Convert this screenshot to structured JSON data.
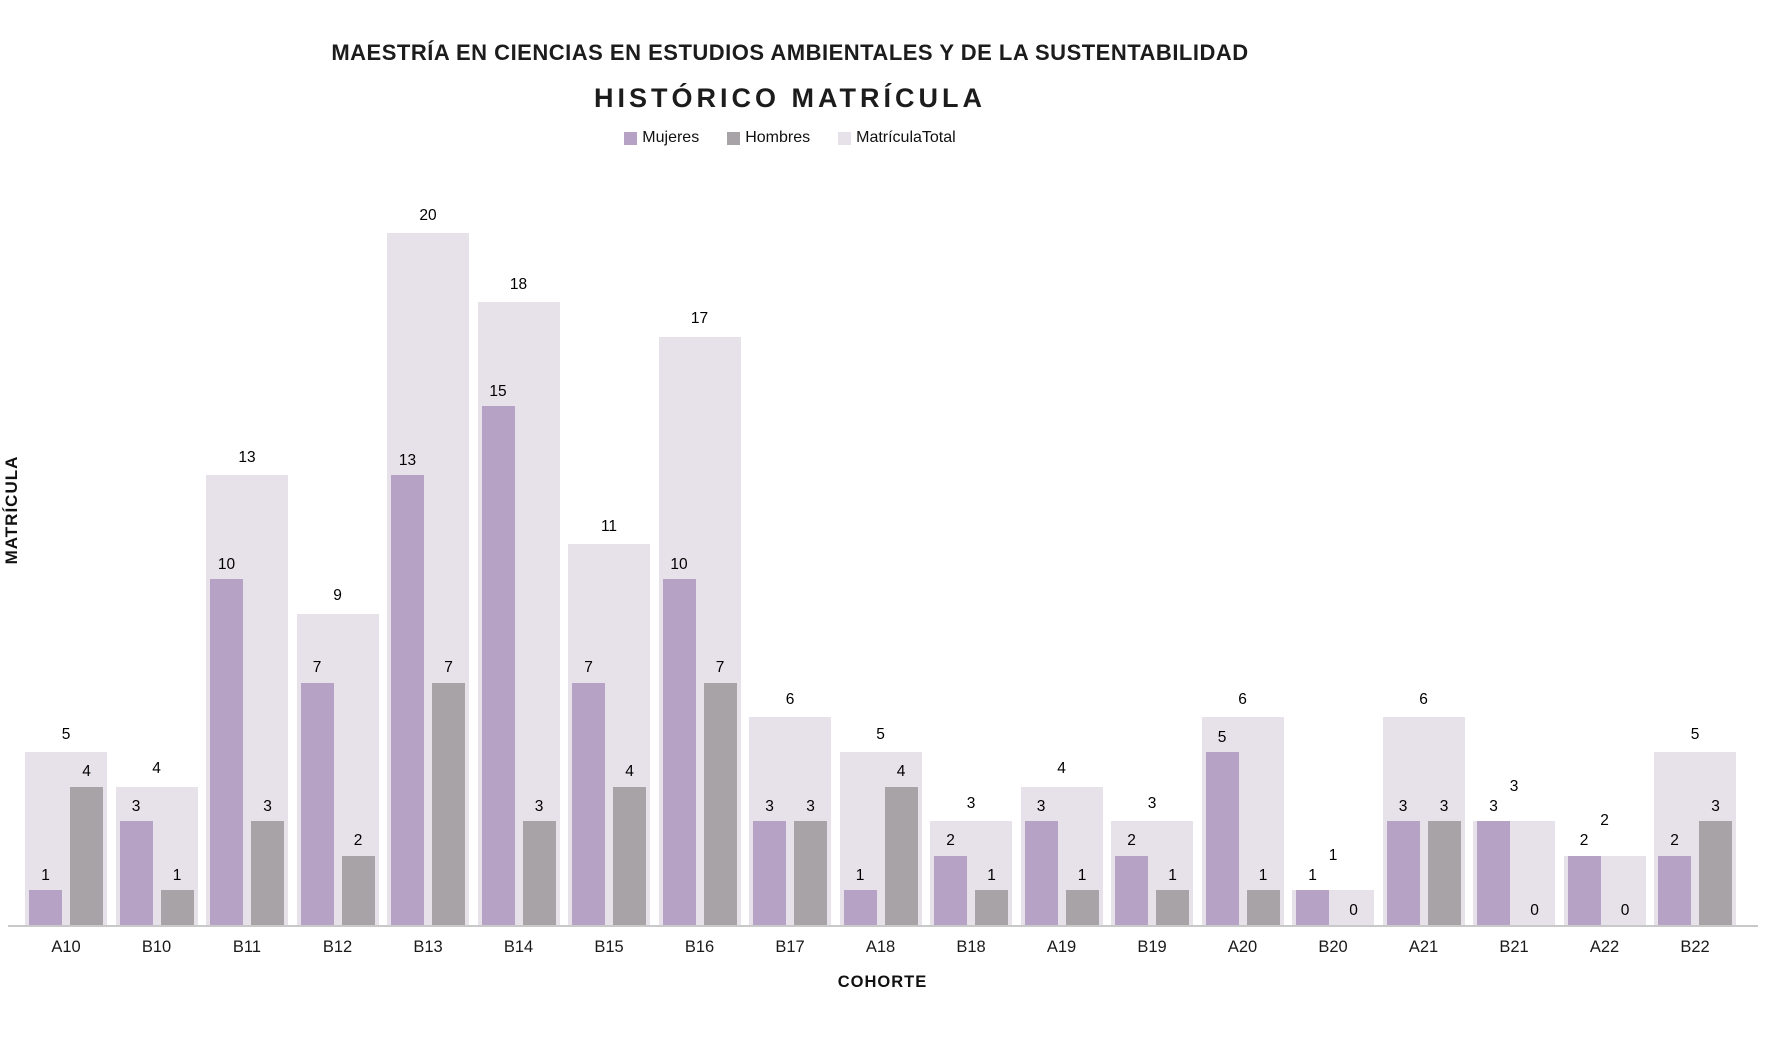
{
  "header": {
    "title": "MAESTRÍA EN CIENCIAS EN ESTUDIOS AMBIENTALES Y DE LA SUSTENTABILIDAD",
    "subtitle": "HISTÓRICO MATRÍCULA"
  },
  "legend": {
    "items": [
      {
        "label": "Mujeres",
        "color": "#b5a2c5"
      },
      {
        "label": "Hombres",
        "color": "#a7a3a7"
      },
      {
        "label": "MatrículaTotal",
        "color": "#e7e1ea"
      }
    ]
  },
  "axes": {
    "y_title": "MATRÍCULA",
    "x_title": "COHORTE"
  },
  "chart_data": {
    "type": "bar",
    "title": "HISTÓRICO MATRÍCULA",
    "subtitle_of": "MAESTRÍA EN CIENCIAS EN ESTUDIOS AMBIENTALES Y DE LA SUSTENTABILIDAD",
    "xlabel": "COHORTE",
    "ylabel": "MATRÍCULA",
    "ylim": [
      0,
      20
    ],
    "grid": false,
    "legend_position": "top",
    "categories": [
      "A10",
      "B10",
      "B11",
      "B12",
      "B13",
      "B14",
      "B15",
      "B16",
      "B17",
      "A18",
      "B18",
      "A19",
      "B19",
      "A20",
      "B20",
      "A21",
      "B21",
      "A22",
      "B22"
    ],
    "series": [
      {
        "name": "Mujeres",
        "color": "#b5a2c5",
        "values": [
          1,
          3,
          10,
          7,
          13,
          15,
          7,
          10,
          3,
          1,
          2,
          3,
          2,
          5,
          1,
          3,
          3,
          2,
          2
        ]
      },
      {
        "name": "Hombres",
        "color": "#a7a3a7",
        "values": [
          4,
          1,
          3,
          2,
          7,
          3,
          4,
          7,
          3,
          4,
          1,
          1,
          1,
          1,
          0,
          3,
          0,
          0,
          3
        ]
      },
      {
        "name": "MatrículaTotal",
        "color": "#e7e1ea",
        "values": [
          5,
          4,
          13,
          9,
          20,
          18,
          11,
          17,
          6,
          5,
          3,
          4,
          3,
          6,
          1,
          6,
          3,
          2,
          5
        ]
      }
    ],
    "colors": {
      "mujeres": "#b5a2c5",
      "hombres": "#a7a3a7",
      "total": "#e7e1ea",
      "axis_line": "#c9c9c9",
      "text": "#000000"
    }
  }
}
